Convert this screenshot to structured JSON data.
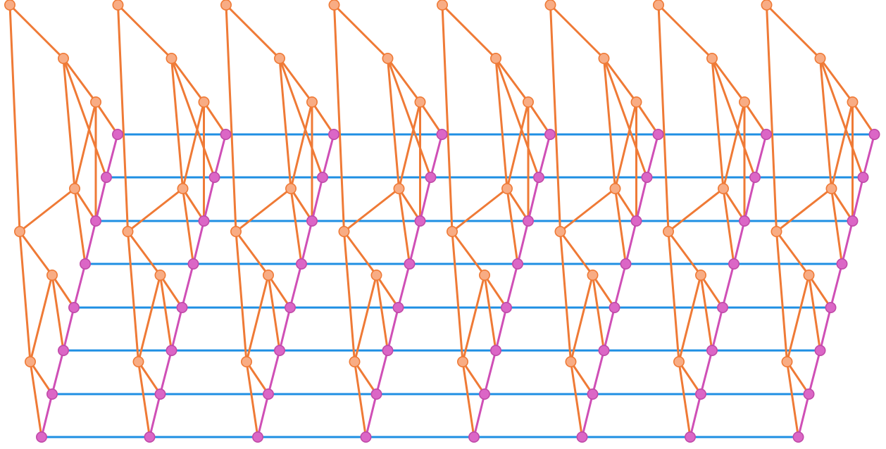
{
  "diagram": {
    "copies": 8,
    "rungs": 8,
    "colors": {
      "background": "#ffffff",
      "orange_edge": "#EF7A36",
      "orange_node_fill": "#F8AC84",
      "magenta_edge": "#CF4FB6",
      "magenta_node_fill": "#DB66C6",
      "blue_edge": "#1F8FE3"
    },
    "node_types": [
      "orange-node",
      "magenta-node"
    ],
    "edge_types": [
      "orange-edge",
      "magenta-edge",
      "blue-edge"
    ]
  }
}
